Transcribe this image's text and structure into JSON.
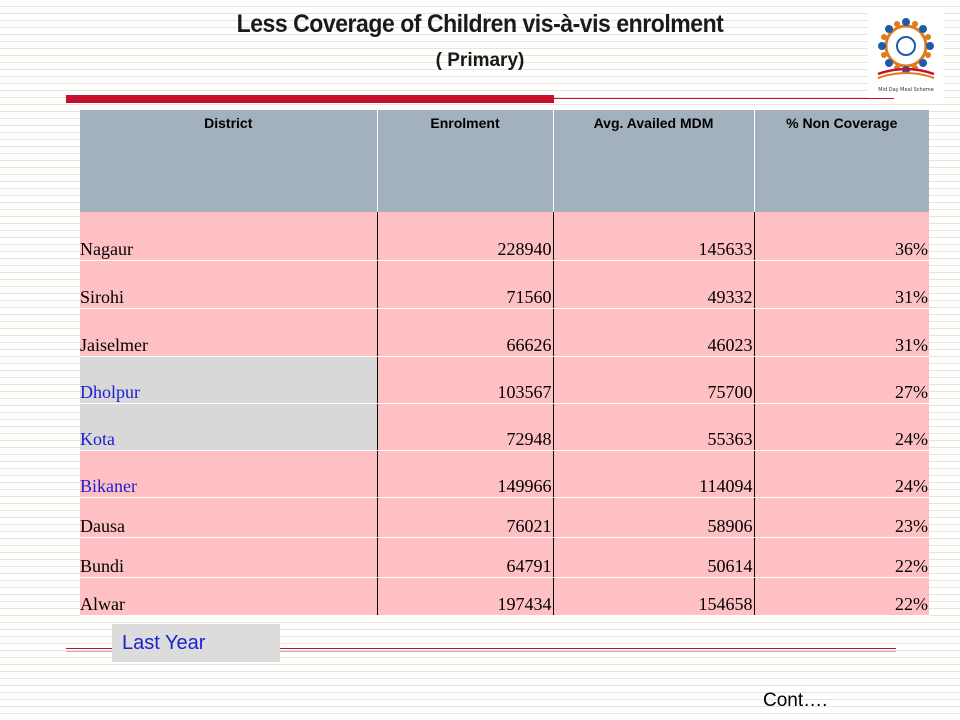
{
  "header": {
    "title": "Less Coverage of Children vis-à-vis enrolment",
    "subtitle": "( Primary)"
  },
  "logo": {
    "name": "mid-day-meal-logo",
    "caption": "Mid Day Meal Scheme",
    "colors": [
      "#1f5ca8",
      "#e07b1e",
      "#c8102e"
    ]
  },
  "table": {
    "columns": [
      "District",
      "Enrolment",
      "Avg. Availed MDM",
      "% Non  Coverage"
    ],
    "rows": [
      {
        "district": "Nagaur",
        "enrolment": "228940",
        "availed": "145633",
        "non_coverage": "36%"
      },
      {
        "district": "Sirohi",
        "enrolment": "71560",
        "availed": "49332",
        "non_coverage": "31%"
      },
      {
        "district": "Jaiselmer",
        "enrolment": "66626",
        "availed": "46023",
        "non_coverage": "31%"
      },
      {
        "district": "Dholpur",
        "enrolment": "103567",
        "availed": "75700",
        "non_coverage": "27%"
      },
      {
        "district": "Kota",
        "enrolment": "72948",
        "availed": "55363",
        "non_coverage": "24%"
      },
      {
        "district": "Bikaner",
        "enrolment": "149966",
        "availed": "114094",
        "non_coverage": "24%"
      },
      {
        "district": "Dausa",
        "enrolment": "76021",
        "availed": "58906",
        "non_coverage": "23%"
      },
      {
        "district": "Bundi",
        "enrolment": "64791",
        "availed": "50614",
        "non_coverage": "22%"
      },
      {
        "district": "Alwar",
        "enrolment": "197434",
        "availed": "154658",
        "non_coverage": "22%"
      }
    ]
  },
  "footer": {
    "last_year": "Last Year",
    "cont": "Cont…."
  },
  "colors": {
    "accent_red": "#c8102e",
    "row_pink": "#ffc0c3",
    "header_grey": "#a3b1bf",
    "highlight_blue": "#1a1fd1"
  }
}
